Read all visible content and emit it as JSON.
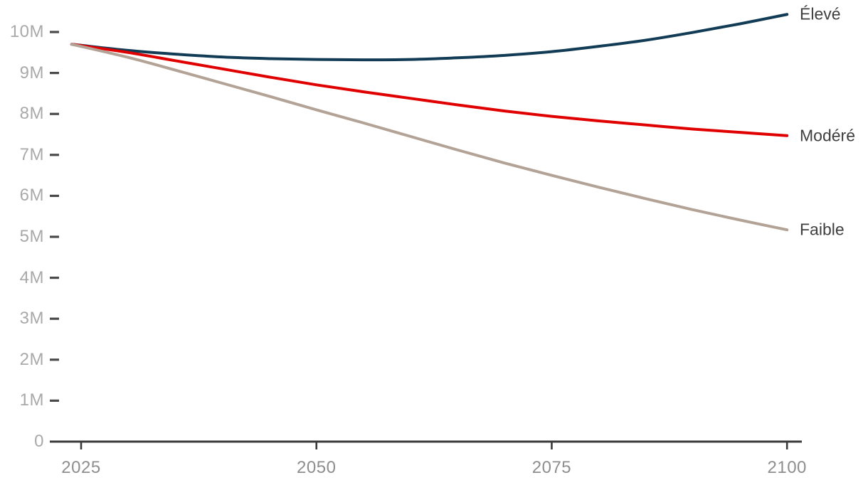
{
  "chart_data": {
    "type": "line",
    "title": "",
    "xlabel": "",
    "ylabel": "",
    "x": [
      2024,
      2030,
      2035,
      2040,
      2045,
      2050,
      2055,
      2060,
      2065,
      2070,
      2075,
      2080,
      2085,
      2090,
      2095,
      2100
    ],
    "series": [
      {
        "name": "Élevé",
        "color": "#123c55",
        "values": [
          9.7,
          9.55,
          9.46,
          9.39,
          9.35,
          9.33,
          9.32,
          9.33,
          9.37,
          9.43,
          9.52,
          9.65,
          9.8,
          9.99,
          10.2,
          10.43
        ]
      },
      {
        "name": "Modéré",
        "color": "#e00000",
        "values": [
          9.7,
          9.5,
          9.3,
          9.1,
          8.9,
          8.71,
          8.54,
          8.38,
          8.22,
          8.07,
          7.94,
          7.83,
          7.73,
          7.63,
          7.55,
          7.47
        ]
      },
      {
        "name": "Faible",
        "color": "#b3a396",
        "values": [
          9.7,
          9.38,
          9.07,
          8.75,
          8.43,
          8.1,
          7.78,
          7.45,
          7.12,
          6.8,
          6.5,
          6.21,
          5.93,
          5.66,
          5.41,
          5.17
        ]
      }
    ],
    "yticks": [
      {
        "value": 0,
        "label": "0"
      },
      {
        "value": 1,
        "label": "1M"
      },
      {
        "value": 2,
        "label": "2M"
      },
      {
        "value": 3,
        "label": "3M"
      },
      {
        "value": 4,
        "label": "4M"
      },
      {
        "value": 5,
        "label": "5M"
      },
      {
        "value": 6,
        "label": "6M"
      },
      {
        "value": 7,
        "label": "7M"
      },
      {
        "value": 8,
        "label": "8M"
      },
      {
        "value": 9,
        "label": "9M"
      },
      {
        "value": 10,
        "label": "10M"
      }
    ],
    "xticks": [
      {
        "value": 2025,
        "label": "2025"
      },
      {
        "value": 2050,
        "label": "2050"
      },
      {
        "value": 2075,
        "label": "2075"
      },
      {
        "value": 2100,
        "label": "2100"
      }
    ],
    "xlim": [
      2024,
      2100
    ],
    "ylim": [
      0,
      10.5
    ],
    "grid": false,
    "legend_position": "right-end-of-line",
    "colors": {
      "axis": "#3a3a3a",
      "y_tick_dash": "#4a4a4a",
      "y_tick_label": "#a9a9a9",
      "x_tick_label": "#8e8e8e",
      "series_label": "#3f3f3f",
      "background": "#ffffff"
    }
  }
}
